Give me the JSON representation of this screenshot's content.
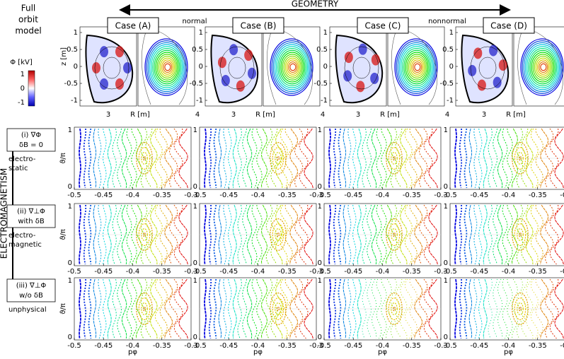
{
  "model_label": [
    "Full",
    "orbit",
    "model"
  ],
  "geometry": {
    "label": "GEOMETRY",
    "left": "normal",
    "right": "nonnormal"
  },
  "cases": [
    "Case (A)",
    "Case (B)",
    "Case (C)",
    "Case (D)"
  ],
  "colorbar": {
    "title": "Φ [kV]",
    "ticks": [
      1,
      0,
      -1
    ]
  },
  "cross_section": {
    "ylabel": "z [m]",
    "zticks": [
      1,
      0.5,
      0,
      -0.5,
      -1
    ],
    "xlabel": "R [m]",
    "rticks": [
      3,
      4
    ]
  },
  "electromagnetism_label": "ELECTROMAGNETISM",
  "rows": [
    {
      "label": "(i) ∇Φ",
      "sub": "δB = 0",
      "note": [
        "electro-",
        "static"
      ]
    },
    {
      "label": "(ii) ∇⊥Φ",
      "sub": "with δB",
      "note": [
        "electro-",
        "magnetic"
      ]
    },
    {
      "label": "(iii) ∇⊥Φ",
      "sub": "w/o δB",
      "note": [
        "unphysical"
      ]
    }
  ],
  "poincare": {
    "ylabel": "ϑ/π",
    "yticks": [
      0,
      1
    ],
    "xticks": [
      -0.5,
      -0.45,
      -0.4,
      -0.35,
      -0.3
    ],
    "xlim": [
      -0.5,
      -0.3
    ],
    "xlabel": "pφ"
  }
}
